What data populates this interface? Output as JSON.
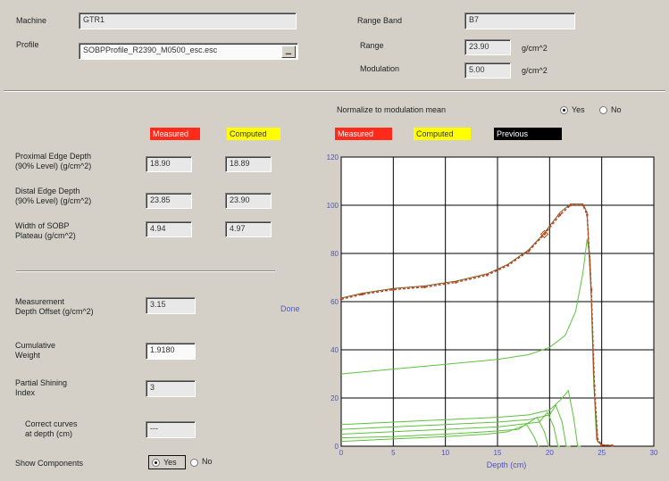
{
  "top": {
    "machine_label": "Machine",
    "machine_value": "GTR1",
    "profile_label": "Profile",
    "profile_value": "SOBPProfile_R2390_M0500_esc.esc",
    "range_band_label": "Range Band",
    "range_band_value": "B7",
    "range_label": "Range",
    "range_value": "23.90",
    "range_unit": "g/cm^2",
    "modulation_label": "Modulation",
    "modulation_value": "5.00",
    "modulation_unit": "g/cm^2"
  },
  "left": {
    "measured_tag": "Measured",
    "computed_tag": "Computed",
    "rows": [
      {
        "label1": "Proximal Edge Depth",
        "label2": "(90% Level) (g/cm^2)",
        "measured": "18.90",
        "computed": "18.89"
      },
      {
        "label1": "Distal Edge Depth",
        "label2": "(90% Level) (g/cm^2)",
        "measured": "23.85",
        "computed": "23.90"
      },
      {
        "label1": "Width of SOBP",
        "label2": "Plateau (g/cm^2)",
        "measured": "4.94",
        "computed": "4.97"
      }
    ],
    "offset_label1": "Measurement",
    "offset_label2": "Depth Offset (g/cm^2)",
    "offset_value": "3.15",
    "done_link": "Done",
    "weight_label1": "Cumulative",
    "weight_label2": "Weight",
    "weight_value": "1.9180",
    "shining_label1": "Partial Shining",
    "shining_label2": "Index",
    "shining_value": "3",
    "correct_label1": "Correct curves",
    "correct_label2": "at depth (cm)",
    "correct_value": "---",
    "show_components_label": "Show Components",
    "show_yes": "Yes",
    "show_no": "No",
    "show_selected": "Yes"
  },
  "right": {
    "normalize_label": "Normalize to modulation mean",
    "normalize_yes": "Yes",
    "normalize_no": "No",
    "normalize_selected": "Yes",
    "legend_measured": "Measured",
    "legend_computed": "Computed",
    "legend_previous": "Previous"
  },
  "colors": {
    "measured": "#ff2a1a",
    "computed": "#ffff00",
    "previous": "#000000",
    "measured_curve": "#c04020",
    "computed_curve": "#5cc23c",
    "axis_text": "#5050c0"
  },
  "chart_data": {
    "type": "line",
    "xlabel": "Depth (cm)",
    "ylabel": "",
    "xlim": [
      0,
      30
    ],
    "ylim": [
      0,
      120
    ],
    "xticks": [
      "0",
      "5",
      "10",
      "15",
      "20",
      "25",
      "30"
    ],
    "yticks": [
      "0",
      "20",
      "40",
      "60",
      "80",
      "100",
      "120"
    ],
    "grid": true,
    "series": [
      {
        "name": "Measured",
        "values_xy": [
          [
            0,
            61
          ],
          [
            2,
            63
          ],
          [
            5,
            65
          ],
          [
            8,
            66
          ],
          [
            11,
            68
          ],
          [
            14,
            71
          ],
          [
            16,
            75
          ],
          [
            18,
            81
          ],
          [
            19.5,
            88
          ],
          [
            21,
            96
          ],
          [
            22,
            100
          ],
          [
            23.2,
            100
          ],
          [
            23.6,
            96
          ],
          [
            24,
            65
          ],
          [
            24.3,
            25
          ],
          [
            24.6,
            3
          ],
          [
            25,
            0.5
          ],
          [
            26,
            0.3
          ]
        ]
      },
      {
        "name": "Computed",
        "values_xy": [
          [
            0,
            61.5
          ],
          [
            2,
            63.5
          ],
          [
            5,
            65.5
          ],
          [
            8,
            66.5
          ],
          [
            11,
            68.5
          ],
          [
            14,
            71.5
          ],
          [
            16,
            75.5
          ],
          [
            18,
            81.5
          ],
          [
            19.5,
            88.5
          ],
          [
            21,
            97
          ],
          [
            22,
            100.5
          ],
          [
            23.2,
            100.5
          ],
          [
            23.6,
            97
          ],
          [
            24,
            62
          ],
          [
            24.3,
            22
          ],
          [
            24.6,
            2
          ],
          [
            25,
            0.5
          ],
          [
            26,
            0.3
          ]
        ]
      },
      {
        "name": "Component",
        "values_xy": [
          [
            0,
            30
          ],
          [
            5,
            32
          ],
          [
            10,
            34
          ],
          [
            15,
            36
          ],
          [
            18,
            38
          ],
          [
            20,
            41
          ],
          [
            21.5,
            46
          ],
          [
            22.5,
            56
          ],
          [
            23.2,
            72
          ],
          [
            23.6,
            86
          ],
          [
            23.9,
            78
          ],
          [
            24.2,
            30
          ],
          [
            24.5,
            3
          ],
          [
            25,
            0
          ]
        ]
      },
      {
        "name": "Component",
        "values_xy": [
          [
            0,
            9
          ],
          [
            5,
            10
          ],
          [
            10,
            11
          ],
          [
            15,
            12
          ],
          [
            18,
            13
          ],
          [
            20,
            15
          ],
          [
            21,
            19
          ],
          [
            21.8,
            23
          ],
          [
            22.3,
            12
          ],
          [
            22.7,
            0
          ],
          [
            23,
            0
          ]
        ]
      },
      {
        "name": "Component",
        "values_xy": [
          [
            0,
            7
          ],
          [
            5,
            8
          ],
          [
            10,
            9
          ],
          [
            15,
            10
          ],
          [
            18,
            11
          ],
          [
            20,
            13
          ],
          [
            20.6,
            17
          ],
          [
            21.2,
            10
          ],
          [
            21.6,
            0
          ],
          [
            22,
            0
          ]
        ]
      },
      {
        "name": "Component",
        "values_xy": [
          [
            0,
            5
          ],
          [
            5,
            6
          ],
          [
            10,
            7
          ],
          [
            15,
            8
          ],
          [
            17,
            9
          ],
          [
            19,
            10
          ],
          [
            19.8,
            14
          ],
          [
            20.4,
            8
          ],
          [
            20.8,
            0
          ],
          [
            21,
            0
          ]
        ]
      },
      {
        "name": "Component",
        "values_xy": [
          [
            0,
            3.5
          ],
          [
            5,
            4
          ],
          [
            10,
            5
          ],
          [
            14,
            6
          ],
          [
            17,
            7
          ],
          [
            18.8,
            12
          ],
          [
            19.5,
            6
          ],
          [
            19.9,
            0
          ],
          [
            20,
            0
          ]
        ]
      },
      {
        "name": "Component",
        "values_xy": [
          [
            0,
            2
          ],
          [
            5,
            3
          ],
          [
            10,
            4
          ],
          [
            14,
            5
          ],
          [
            16,
            6
          ],
          [
            17.8,
            9
          ],
          [
            18.5,
            4
          ],
          [
            18.9,
            0
          ],
          [
            19,
            0
          ]
        ]
      }
    ]
  }
}
